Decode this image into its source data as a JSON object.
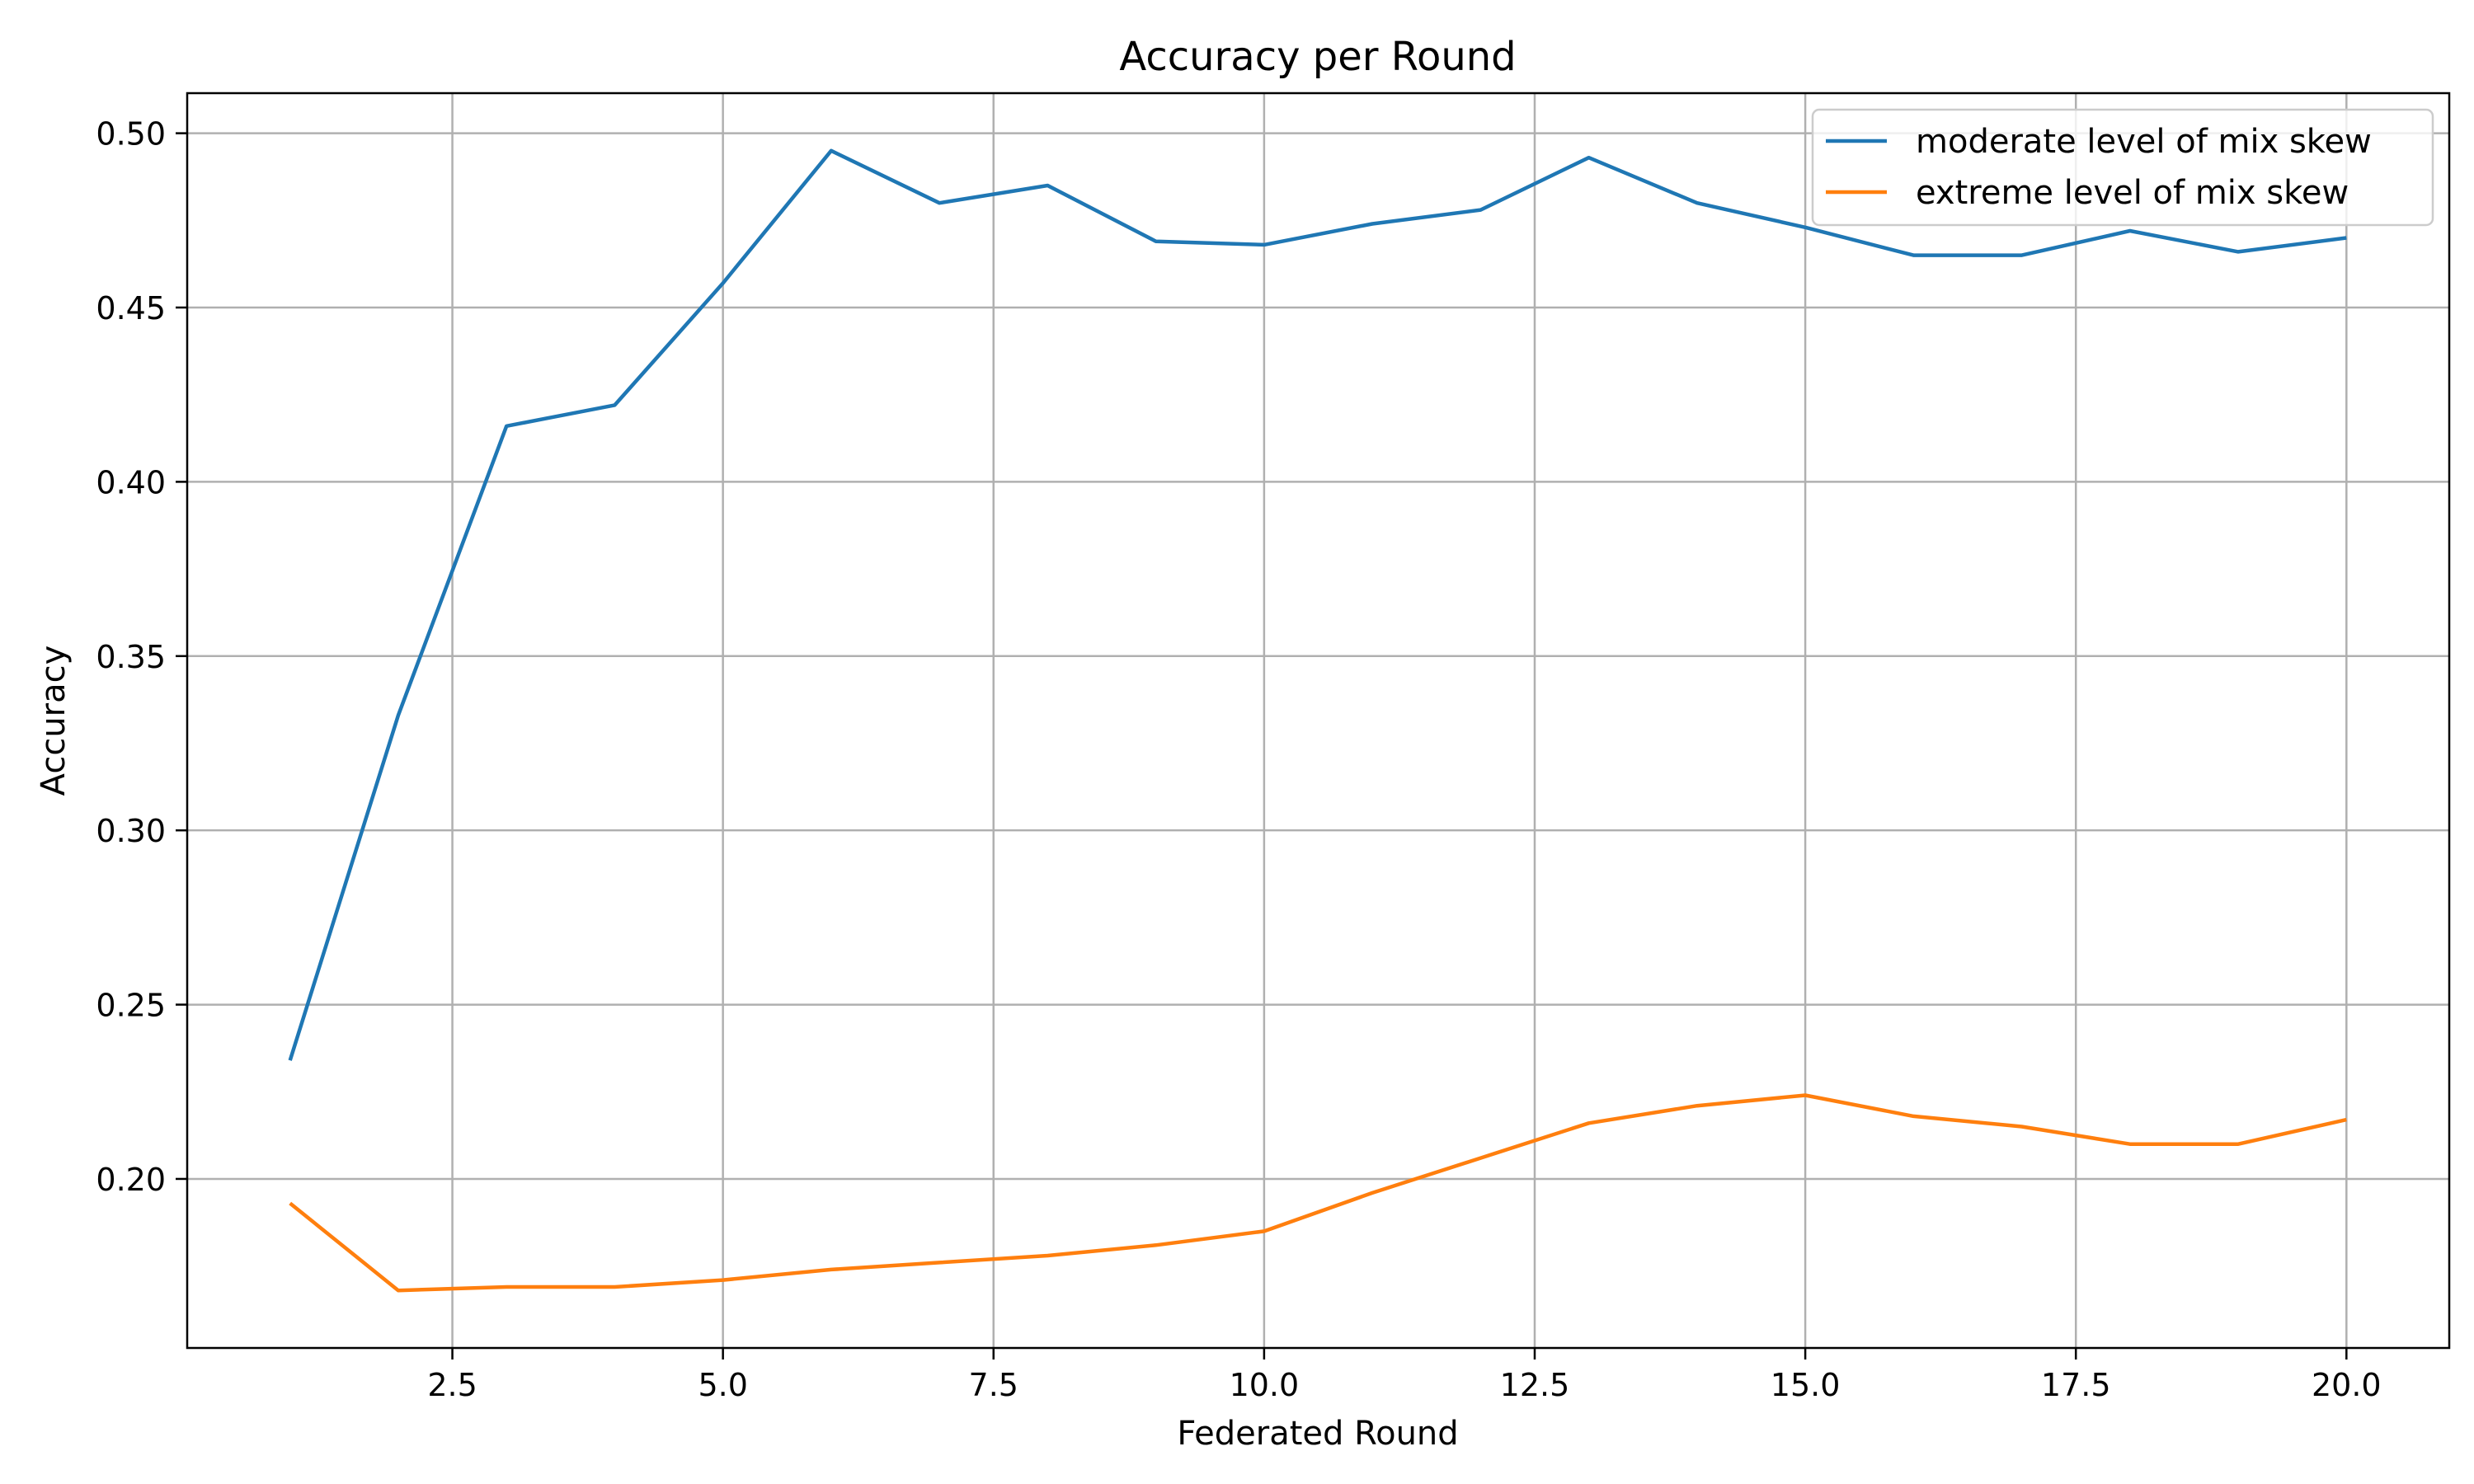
{
  "chart_data": {
    "type": "line",
    "title": "Accuracy per Round",
    "xlabel": "Federated Round",
    "ylabel": "Accuracy",
    "xlim": [
      0.05,
      20.95
    ],
    "ylim": [
      0.1515,
      0.5115
    ],
    "xticks": [
      2.5,
      5.0,
      7.5,
      10.0,
      12.5,
      15.0,
      17.5,
      20.0
    ],
    "xtick_labels": [
      "2.5",
      "5.0",
      "7.5",
      "10.0",
      "12.5",
      "15.0",
      "17.5",
      "20.0"
    ],
    "yticks": [
      0.2,
      0.25,
      0.3,
      0.35,
      0.4,
      0.45,
      0.5
    ],
    "ytick_labels": [
      "0.20",
      "0.25",
      "0.30",
      "0.35",
      "0.40",
      "0.45",
      "0.50"
    ],
    "grid": true,
    "legend_position": "upper right",
    "x": [
      1,
      2,
      3,
      4,
      5,
      6,
      7,
      8,
      9,
      10,
      11,
      12,
      13,
      14,
      15,
      16,
      17,
      18,
      19,
      20
    ],
    "series": [
      {
        "name": "moderate level of mix skew",
        "color": "#1f77b4",
        "values": [
          0.234,
          0.333,
          0.416,
          0.422,
          0.457,
          0.495,
          0.48,
          0.485,
          0.469,
          0.468,
          0.474,
          0.478,
          0.493,
          0.48,
          0.473,
          0.465,
          0.465,
          0.472,
          0.466,
          0.47
        ]
      },
      {
        "name": "extreme level of mix skew",
        "color": "#ff7f0e",
        "values": [
          0.193,
          0.168,
          0.169,
          0.169,
          0.171,
          0.174,
          0.176,
          0.178,
          0.181,
          0.185,
          0.196,
          0.206,
          0.216,
          0.221,
          0.224,
          0.218,
          0.215,
          0.21,
          0.21,
          0.217
        ]
      }
    ]
  }
}
